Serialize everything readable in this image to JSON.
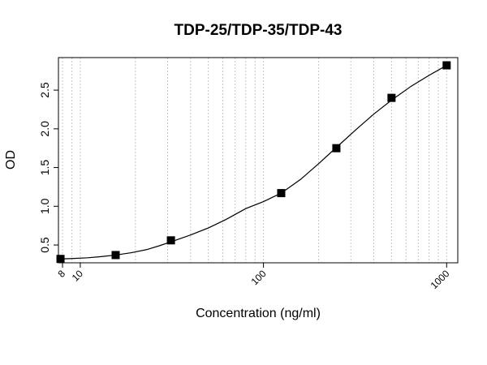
{
  "chart_data": {
    "type": "scatter",
    "title": "TDP-25/TDP-35/TDP-43",
    "xlabel": "Concentration (ng/ml)",
    "ylabel": "OD",
    "x_scale": "log",
    "xlim": [
      7.6,
      1150
    ],
    "ylim": [
      0.27,
      2.92
    ],
    "x_tick_labels": [
      "8",
      "10",
      "100",
      "1000"
    ],
    "x_ticks": [
      8,
      10,
      100,
      1000
    ],
    "y_tick_labels": [
      "0.5",
      "1.0",
      "1.5",
      "2.0",
      "2.5"
    ],
    "y_ticks": [
      0.5,
      1.0,
      1.5,
      2.0,
      2.5
    ],
    "grid": "vertical dotted, log minor",
    "series": [
      {
        "x": [
          7.8,
          15.6,
          31.25,
          125,
          250,
          500,
          1000
        ],
        "y": [
          0.32,
          0.37,
          0.56,
          1.17,
          1.75,
          2.4,
          2.82
        ]
      }
    ],
    "fit_curve": {
      "x": [
        7.8,
        9,
        11,
        13,
        15.6,
        19,
        23,
        27,
        31.25,
        40,
        50,
        62.5,
        80,
        100,
        125,
        160,
        200,
        250,
        320,
        400,
        500,
        640,
        800,
        1000
      ],
      "y": [
        0.32,
        0.325,
        0.335,
        0.35,
        0.37,
        0.4,
        0.44,
        0.49,
        0.54,
        0.63,
        0.72,
        0.83,
        0.97,
        1.06,
        1.17,
        1.35,
        1.55,
        1.76,
        1.99,
        2.19,
        2.37,
        2.55,
        2.69,
        2.82
      ]
    }
  }
}
